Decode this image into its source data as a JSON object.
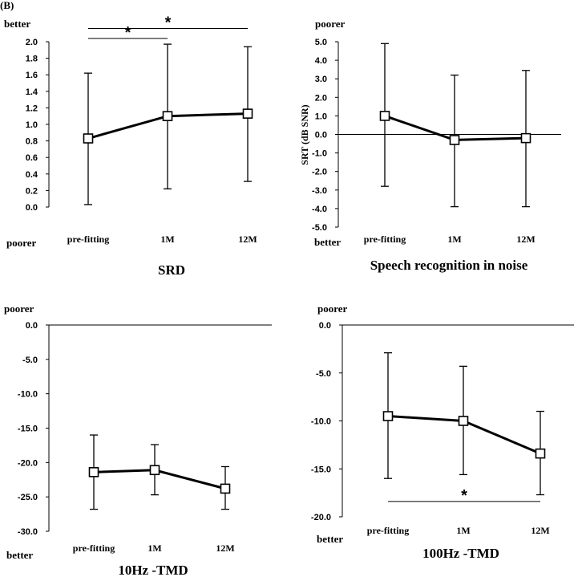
{
  "panel_label": "(B)",
  "chart_data": [
    {
      "type": "line",
      "title": "SRD",
      "categories": [
        "pre-fitting",
        "1M",
        "12M"
      ],
      "series": [
        {
          "name": "SRD",
          "values": [
            0.83,
            1.1,
            1.13
          ],
          "err_low": [
            0.03,
            0.22,
            0.31
          ],
          "err_high": [
            1.62,
            1.97,
            1.94
          ]
        }
      ],
      "ylim": [
        0.0,
        2.0
      ],
      "ticks": [
        "0.0",
        "0.2",
        "0.4",
        "0.6",
        "0.8",
        "1.0",
        "1.2",
        "1.4",
        "1.6",
        "1.8",
        "2.0"
      ],
      "ylabel": "",
      "top_label": "better",
      "bottom_label": "poorer",
      "zero_line": false,
      "significance": [
        {
          "from": 0,
          "to": 2,
          "value": 2.16,
          "label": "*"
        },
        {
          "from": 0,
          "to": 1,
          "value": 2.04,
          "label": "*"
        }
      ]
    },
    {
      "type": "line",
      "title": "Speech recognition in noise",
      "categories": [
        "pre-fitting",
        "1M",
        "12M"
      ],
      "series": [
        {
          "name": "SRT",
          "values": [
            1.0,
            -0.3,
            -0.2
          ],
          "err_low": [
            -2.8,
            -3.9,
            -3.9
          ],
          "err_high": [
            4.9,
            3.2,
            3.45
          ]
        }
      ],
      "ylim": [
        -5.0,
        5.0
      ],
      "ticks": [
        "-5.0",
        "-4.0",
        "-3.0",
        "-2.0",
        "-1.0",
        "0.0",
        "1.0",
        "2.0",
        "3.0",
        "4.0",
        "5.0"
      ],
      "ylabel": "SRT (dB SNR)",
      "top_label": "poorer",
      "bottom_label": "better",
      "zero_line": true,
      "significance": []
    },
    {
      "type": "line",
      "title": "10Hz -TMD",
      "categories": [
        "pre-fitting",
        "1M",
        "12M"
      ],
      "series": [
        {
          "name": "10Hz TMD",
          "values": [
            -21.4,
            -21.1,
            -23.8
          ],
          "err_low": [
            -26.8,
            -24.7,
            -26.8
          ],
          "err_high": [
            -16.0,
            -17.4,
            -20.6
          ]
        }
      ],
      "ylim": [
        -30.0,
        0.0
      ],
      "ticks": [
        "-30.0",
        "-25.0",
        "-20.0",
        "-15.0",
        "-10.0",
        "-5.0",
        "0.0"
      ],
      "ylabel": "",
      "top_label": "poorer",
      "bottom_label": "better",
      "zero_line": true,
      "significance": []
    },
    {
      "type": "line",
      "title": "100Hz -TMD",
      "categories": [
        "pre-fitting",
        "1M",
        "12M"
      ],
      "series": [
        {
          "name": "100Hz TMD",
          "values": [
            -9.5,
            -10.0,
            -13.4
          ],
          "err_low": [
            -16.0,
            -15.6,
            -17.7
          ],
          "err_high": [
            -2.9,
            -4.3,
            -9.0
          ]
        }
      ],
      "ylim": [
        -20.0,
        0.0
      ],
      "ticks": [
        "-20.0",
        "-15.0",
        "-10.0",
        "-5.0",
        "0.0"
      ],
      "ylabel": "",
      "top_label": "poorer",
      "bottom_label": "better",
      "zero_line": true,
      "significance": [
        {
          "from": 0,
          "to": 2,
          "value": -18.4,
          "label": "*"
        }
      ]
    }
  ]
}
